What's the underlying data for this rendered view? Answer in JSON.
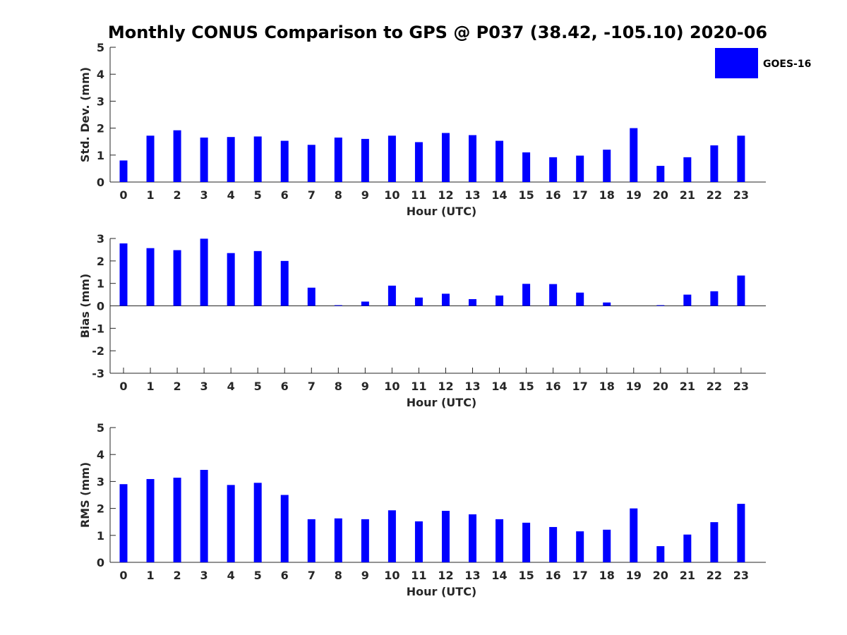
{
  "figure_title": "Monthly CONUS Comparison to GPS @ P037 (38.42, -105.10) 2020-06",
  "legend": {
    "label": "GOES-16",
    "color": "#0000ff"
  },
  "chart_data": [
    {
      "type": "bar",
      "xlabel": "Hour (UTC)",
      "ylabel": "Std. Dev. (mm)",
      "ylim": [
        0,
        5
      ],
      "yticks": [
        0,
        1,
        2,
        3,
        4,
        5
      ],
      "categories": [
        "0",
        "1",
        "2",
        "3",
        "4",
        "5",
        "6",
        "7",
        "8",
        "9",
        "10",
        "11",
        "12",
        "13",
        "14",
        "15",
        "16",
        "17",
        "18",
        "19",
        "20",
        "21",
        "22",
        "23"
      ],
      "series": [
        {
          "name": "GOES-16",
          "color": "#0000ff",
          "values": [
            0.8,
            1.72,
            1.92,
            1.65,
            1.67,
            1.69,
            1.53,
            1.38,
            1.65,
            1.6,
            1.72,
            1.48,
            1.82,
            1.74,
            1.53,
            1.1,
            0.92,
            0.98,
            1.2,
            2.0,
            0.6,
            0.92,
            1.36,
            1.72
          ]
        }
      ],
      "grid": false
    },
    {
      "type": "bar",
      "xlabel": "Hour (UTC)",
      "ylabel": "Bias (mm)",
      "ylim": [
        -3,
        3
      ],
      "yticks": [
        -3,
        -2,
        -1,
        0,
        1,
        2,
        3
      ],
      "categories": [
        "0",
        "1",
        "2",
        "3",
        "4",
        "5",
        "6",
        "7",
        "8",
        "9",
        "10",
        "11",
        "12",
        "13",
        "14",
        "15",
        "16",
        "17",
        "18",
        "19",
        "20",
        "21",
        "22",
        "23"
      ],
      "series": [
        {
          "name": "GOES-16",
          "color": "#0000ff",
          "values": [
            2.78,
            2.57,
            2.48,
            2.99,
            2.35,
            2.44,
            2.0,
            0.81,
            0.03,
            0.19,
            0.9,
            0.37,
            0.54,
            0.3,
            0.46,
            0.98,
            0.97,
            0.59,
            0.15,
            0.0,
            0.03,
            0.5,
            0.65,
            1.35
          ]
        }
      ],
      "grid": false
    },
    {
      "type": "bar",
      "xlabel": "Hour (UTC)",
      "ylabel": "RMS (mm)",
      "ylim": [
        0,
        5
      ],
      "yticks": [
        0,
        1,
        2,
        3,
        4,
        5
      ],
      "categories": [
        "0",
        "1",
        "2",
        "3",
        "4",
        "5",
        "6",
        "7",
        "8",
        "9",
        "10",
        "11",
        "12",
        "13",
        "14",
        "15",
        "16",
        "17",
        "18",
        "19",
        "20",
        "21",
        "22",
        "23"
      ],
      "series": [
        {
          "name": "GOES-16",
          "color": "#0000ff",
          "values": [
            2.9,
            3.09,
            3.14,
            3.43,
            2.87,
            2.95,
            2.5,
            1.6,
            1.63,
            1.6,
            1.93,
            1.52,
            1.91,
            1.78,
            1.6,
            1.47,
            1.31,
            1.15,
            1.21,
            2.0,
            0.6,
            1.03,
            1.49,
            2.17
          ]
        }
      ],
      "grid": false
    }
  ]
}
